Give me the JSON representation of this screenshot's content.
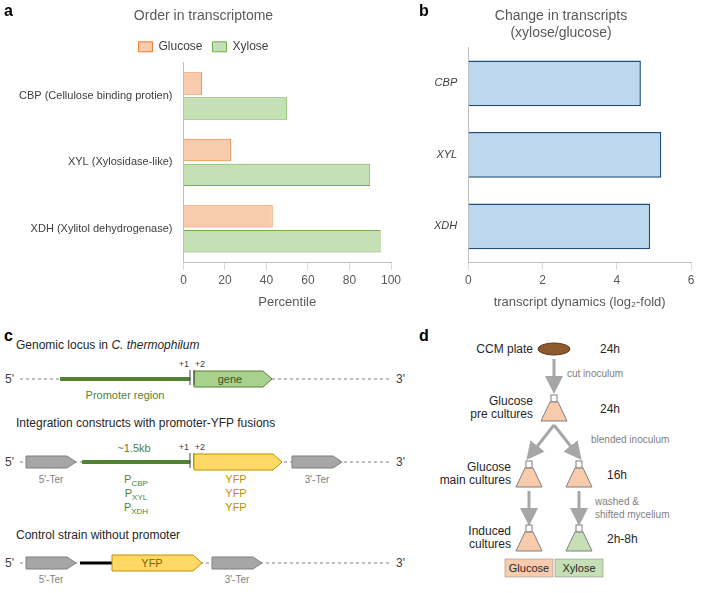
{
  "chart_data": [
    {
      "panel": "a",
      "type": "bar",
      "orientation": "horizontal",
      "title": "Order in transcriptome",
      "categories": [
        "CBP (Cellulose binding protien)",
        "XYL (Xylosidase-like)",
        "XDH (Xylitol dehydrogenase)"
      ],
      "series": [
        {
          "name": "Glucose",
          "color": "#f8cbad",
          "values": [
            9,
            23,
            43
          ]
        },
        {
          "name": "Xylose",
          "color": "#c5e0b4",
          "values": [
            50,
            90,
            95
          ]
        }
      ],
      "xlabel": "Percentile",
      "xlim": [
        0,
        100
      ],
      "xticks": [
        0,
        20,
        40,
        60,
        80,
        100
      ],
      "legend": "top",
      "grid": false
    },
    {
      "panel": "b",
      "type": "bar",
      "orientation": "horizontal",
      "title": [
        "Change in transcripts",
        "(xylose/glucose)"
      ],
      "categories": [
        "CBP",
        "XYL",
        "XDH"
      ],
      "values": [
        4.65,
        5.2,
        4.9
      ],
      "color": "#bdd7ee",
      "xlabel": "transcript dynamics (log₂-fold)",
      "xlim": [
        0,
        6
      ],
      "xticks": [
        0,
        2,
        4,
        6
      ],
      "grid": false
    }
  ],
  "diagram_c": {
    "panel": "c",
    "locus": {
      "title": "Genomic locus in",
      "organism": "C. thermophilum",
      "end_left": "5'",
      "end_right": "3'",
      "promoter": "Promoter region",
      "gene": "gene",
      "marks": [
        "+1",
        "+2"
      ]
    },
    "constructs": {
      "title": "Integration constructs with promoter-YFP fusions",
      "end_left": "5'",
      "end_right": "3'",
      "terminator_left": "5'-Ter",
      "terminator_right": "3'-Ter",
      "length": "~1.5kb",
      "marks": [
        "+1",
        "+2"
      ],
      "fusions": [
        {
          "label": "P",
          "subscript": "CBP",
          "gene": "YFP"
        },
        {
          "label": "P",
          "subscript": "XYL",
          "gene": "YFP"
        },
        {
          "label": "P",
          "subscript": "XDH",
          "gene": "YFP"
        }
      ]
    },
    "control": {
      "title": "Control strain without promoter",
      "end_left": "5'",
      "end_right": "3'",
      "terminator_left": "5'-Ter",
      "terminator_right": "3'-Ter",
      "gene": "YFP"
    }
  },
  "diagram_d": {
    "panel": "d",
    "steps": [
      {
        "label": [
          "CCM plate"
        ],
        "time": "24h"
      },
      {
        "label": [
          "Glucose",
          "pre cultures"
        ],
        "time": "24h"
      },
      {
        "label": [
          "Glucose",
          "main cultures"
        ],
        "time": "16h"
      },
      {
        "label": [
          "Induced",
          "cultures"
        ],
        "time": "2h-8h"
      }
    ],
    "transitions": [
      [
        "cut inoculum"
      ],
      [
        "blended inoculum"
      ],
      [
        "washed &",
        "shifted mycelium"
      ]
    ],
    "conditions": [
      "Glucose",
      "Xylose"
    ]
  }
}
